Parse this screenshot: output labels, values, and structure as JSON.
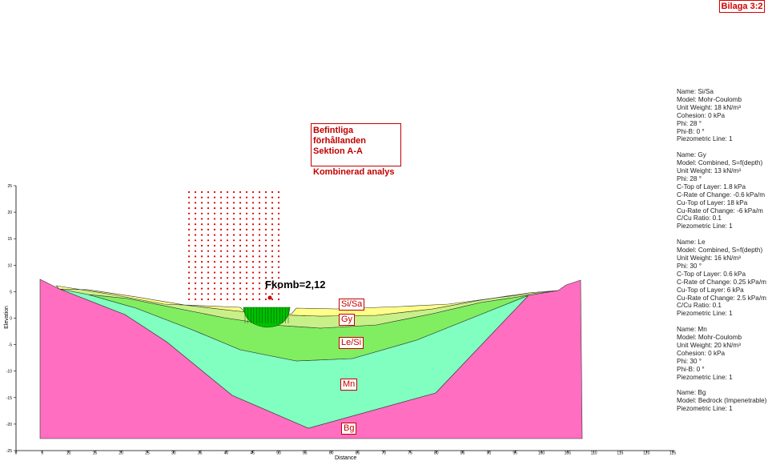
{
  "stamp": "Bilaga 3:2",
  "title": {
    "line1": "Befintliga förhållanden",
    "line2": "Sektion A-A",
    "line3": "Kombinerad analys"
  },
  "factor_of_safety": "Fkomb=2,12",
  "layer_labels": [
    "Si/Sa",
    "Gy",
    "Le/Si",
    "Mn",
    "Bg"
  ],
  "materials": [
    {
      "lines": [
        "Name: Si/Sa",
        "Model: Mohr-Coulomb",
        "Unit Weight: 18 kN/m³",
        "Cohesion: 0 kPa",
        "Phi: 28 °",
        "Phi-B: 0 °",
        "Piezometric Line: 1"
      ]
    },
    {
      "lines": [
        "Name: Gy",
        "Model: Combined, S=f(depth)",
        "Unit Weight: 13 kN/m³",
        "Phi: 28 °",
        "C-Top of Layer: 1.8 kPa",
        "C-Rate of Change: -0.6 kPa/m",
        "Cu-Top of Layer: 18 kPa",
        "Cu-Rate of Change: -6 kPa/m",
        "C/Cu Ratio: 0.1",
        "Piezometric Line: 1"
      ]
    },
    {
      "lines": [
        "Name: Le",
        "Model: Combined, S=f(depth)",
        "Unit Weight: 16 kN/m³",
        "Phi: 30 °",
        "C-Top of Layer: 0.6 kPa",
        "C-Rate of Change: 0.25 kPa/m",
        "Cu-Top of Layer: 6 kPa",
        "Cu-Rate of Change: 2.5 kPa/m",
        "C/Cu Ratio: 0.1",
        "Piezometric Line: 1"
      ]
    },
    {
      "lines": [
        "Name: Mn",
        "Model: Mohr-Coulomb",
        "Unit Weight: 20 kN/m³",
        "Cohesion: 0 kPa",
        "Phi: 30 °",
        "Phi-B: 0 °",
        "Piezometric Line: 1"
      ]
    },
    {
      "lines": [
        "Name: Bg",
        "Model: Bedrock (Impenetrable)",
        "Piezometric Line: 1"
      ]
    }
  ],
  "x_axis": {
    "label": "Distance",
    "ticks": [
      "0",
      "5",
      "10",
      "15",
      "20",
      "25",
      "30",
      "35",
      "40",
      "45",
      "50",
      "55",
      "60",
      "65",
      "70",
      "75",
      "80",
      "85",
      "90",
      "95",
      "100",
      "105",
      "110",
      "115",
      "120",
      "125"
    ]
  },
  "y_axis": {
    "label": "Elevation",
    "ticks": [
      "25",
      "20",
      "15",
      "10",
      "5",
      "0",
      "-5",
      "-10",
      "-15",
      "-20",
      "-25"
    ]
  },
  "colors": {
    "si_sa": "#ffff88",
    "gy": "#c8f088",
    "le": "#80ee60",
    "mn": "#80ffc0",
    "bg": "#ff6ec0",
    "slip": "#00c000",
    "grid": "#e00000",
    "accent": "#c00000"
  }
}
